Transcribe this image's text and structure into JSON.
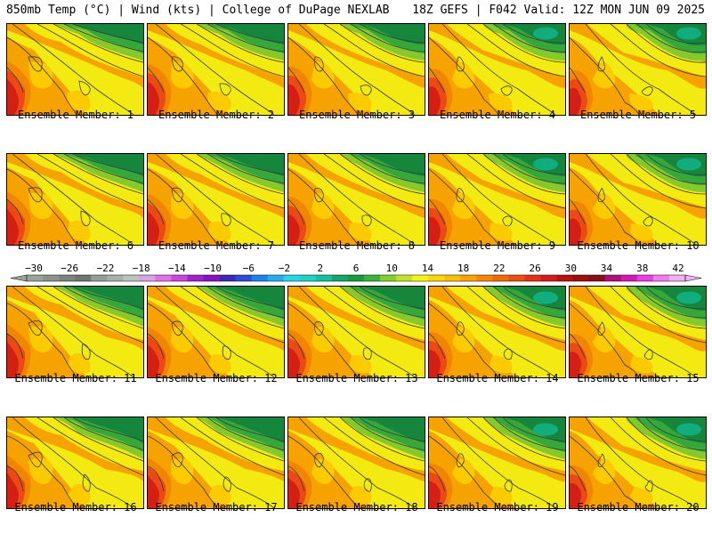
{
  "header": {
    "left": "850mb Temp (°C) | Wind (kts) | College of DuPage NEXLAB",
    "right": "18Z GEFS | F042 Valid: 12Z MON JUN 09 2025"
  },
  "caption_prefix": "Ensemble Member:",
  "members": [
    {
      "number": "1",
      "label": "Ensemble Member: 1"
    },
    {
      "number": "2",
      "label": "Ensemble Member: 2"
    },
    {
      "number": "3",
      "label": "Ensemble Member: 3"
    },
    {
      "number": "4",
      "label": "Ensemble Member: 4"
    },
    {
      "number": "5",
      "label": "Ensemble Member: 5"
    },
    {
      "number": "6",
      "label": "Ensemble Member: 6"
    },
    {
      "number": "7",
      "label": "Ensemble Member: 7"
    },
    {
      "number": "8",
      "label": "Ensemble Member: 8"
    },
    {
      "number": "9",
      "label": "Ensemble Member: 9"
    },
    {
      "number": "10",
      "label": "Ensemble Member: 10"
    },
    {
      "number": "11",
      "label": "Ensemble Member: 11"
    },
    {
      "number": "12",
      "label": "Ensemble Member: 12"
    },
    {
      "number": "13",
      "label": "Ensemble Member: 13"
    },
    {
      "number": "14",
      "label": "Ensemble Member: 14"
    },
    {
      "number": "15",
      "label": "Ensemble Member: 15"
    },
    {
      "number": "16",
      "label": "Ensemble Member: 16"
    },
    {
      "number": "17",
      "label": "Ensemble Member: 17"
    },
    {
      "number": "18",
      "label": "Ensemble Member: 18"
    },
    {
      "number": "19",
      "label": "Ensemble Member: 19"
    },
    {
      "number": "20",
      "label": "Ensemble Member: 20"
    }
  ],
  "colorbar": {
    "units": "°C",
    "labels": [
      "−30",
      "−26",
      "−22",
      "−18",
      "−14",
      "−10",
      "−6",
      "−2",
      "2",
      "6",
      "10",
      "14",
      "18",
      "22",
      "26",
      "30",
      "34",
      "38",
      "42"
    ],
    "colors": [
      "#9aa39a",
      "#8a928a",
      "#7c847c",
      "#6f766f",
      "#959d95",
      "#a9b0a9",
      "#bcc2bc",
      "#d9a3e3",
      "#e071e6",
      "#cc44dd",
      "#a020d0",
      "#8a10c0",
      "#3a2ab5",
      "#2a4ed8",
      "#1e82e8",
      "#22aeea",
      "#26d4ec",
      "#1ed3c2",
      "#12c29a",
      "#13a86a",
      "#169a3a",
      "#3bb23a",
      "#84cf2c",
      "#c2e22a",
      "#f5f512",
      "#fad800",
      "#fbbf00",
      "#faa200",
      "#f78500",
      "#f06a00",
      "#ec4e10",
      "#e53018",
      "#d41a1a",
      "#b80f10",
      "#99100c",
      "#8a0c1a",
      "#b0107a",
      "#d418b6",
      "#ee3be6",
      "#f07af0",
      "#f2b0f2"
    ]
  },
  "map_colors": {
    "dark_green": "#15863c",
    "green": "#36a83a",
    "light_green": "#86c92c",
    "yellow": "#f2ea10",
    "light_orange": "#fbcb00",
    "orange": "#f6a200",
    "dark_orange": "#f08600",
    "red": "#ec4a14",
    "dark_red": "#d42014",
    "teal": "#12b489",
    "contour": "#3a3a3a"
  }
}
